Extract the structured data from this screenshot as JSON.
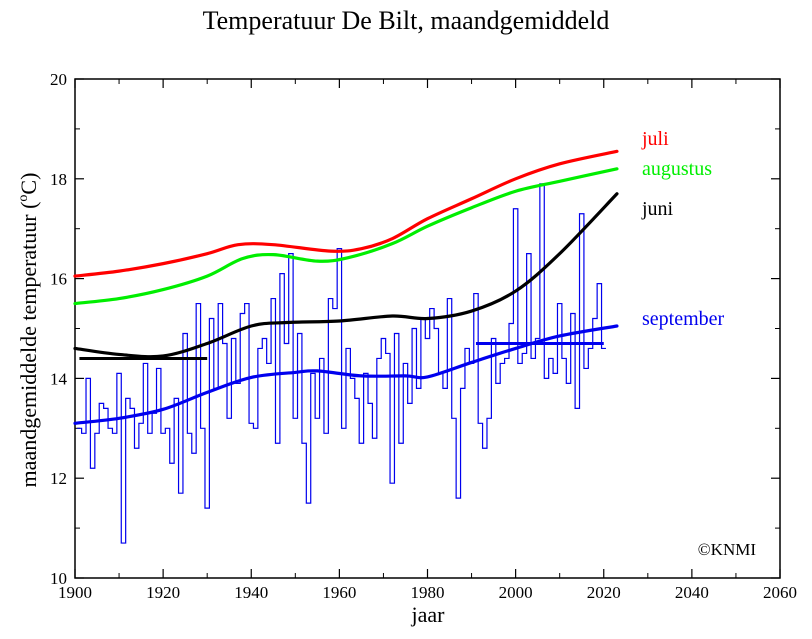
{
  "chart_data": {
    "type": "line",
    "title": "Temperatuur De Bilt, maandgemiddeld",
    "xlabel": "jaar",
    "ylabel_main": "maandgemiddelde temperatuur (",
    "ylabel_sup": "o",
    "ylabel_end": "C)",
    "xlim": [
      1900,
      2060
    ],
    "ylim": [
      10,
      20
    ],
    "xticks": [
      1900,
      1920,
      1940,
      1960,
      1980,
      2000,
      2020,
      2040,
      2060
    ],
    "yticks": [
      10,
      12,
      14,
      16,
      18,
      20
    ],
    "credit": "©KNMI",
    "series": [
      {
        "name": "juli",
        "color": "#ff0000",
        "x": [
          1900,
          1910,
          1920,
          1930,
          1937,
          1945,
          1958,
          1965,
          1972,
          1980,
          1990,
          2000,
          2010,
          2023
        ],
        "y": [
          16.05,
          16.15,
          16.3,
          16.5,
          16.68,
          16.68,
          16.55,
          16.6,
          16.8,
          17.2,
          17.6,
          18.0,
          18.3,
          18.55
        ]
      },
      {
        "name": "augustus",
        "color": "#00ee00",
        "x": [
          1900,
          1910,
          1920,
          1930,
          1938,
          1945,
          1955,
          1962,
          1972,
          1980,
          1990,
          2000,
          2010,
          2023
        ],
        "y": [
          15.5,
          15.6,
          15.78,
          16.05,
          16.4,
          16.48,
          16.35,
          16.42,
          16.7,
          17.05,
          17.42,
          17.75,
          17.95,
          18.2
        ]
      },
      {
        "name": "juni",
        "color": "#000000",
        "x": [
          1900,
          1910,
          1920,
          1930,
          1940,
          1948,
          1960,
          1972,
          1980,
          1990,
          2000,
          2010,
          2023
        ],
        "y": [
          14.6,
          14.48,
          14.45,
          14.7,
          15.05,
          15.12,
          15.15,
          15.25,
          15.2,
          15.35,
          15.75,
          16.5,
          17.7
        ]
      },
      {
        "name": "september",
        "color": "#0000ee",
        "x": [
          1900,
          1910,
          1920,
          1930,
          1940,
          1950,
          1955,
          1965,
          1975,
          1980,
          1990,
          2000,
          2010,
          2023
        ],
        "y": [
          13.1,
          13.2,
          13.38,
          13.72,
          14.02,
          14.12,
          14.15,
          14.05,
          14.05,
          14.03,
          14.32,
          14.6,
          14.85,
          15.05
        ]
      }
    ],
    "reference_lines": [
      {
        "name": "juni 1901-1930",
        "color": "#000000",
        "x": [
          1901,
          1930
        ],
        "y": 14.4
      },
      {
        "name": "september 1991-2020",
        "color": "#0000ee",
        "x": [
          1991,
          2020
        ],
        "y": 14.7
      }
    ],
    "september_yearly": {
      "color": "#0000ee",
      "start_year": 1901,
      "values": [
        13.0,
        12.9,
        14.0,
        12.2,
        12.9,
        13.5,
        13.4,
        13.0,
        12.9,
        14.1,
        10.7,
        13.6,
        13.4,
        12.6,
        13.1,
        14.3,
        12.9,
        13.3,
        14.2,
        12.9,
        13.0,
        12.3,
        13.6,
        11.7,
        14.9,
        12.9,
        12.5,
        15.5,
        13.0,
        11.4,
        15.2,
        13.8,
        15.5,
        14.7,
        13.2,
        14.8,
        13.9,
        15.3,
        15.5,
        13.1,
        13.0,
        14.6,
        14.8,
        14.3,
        15.6,
        12.7,
        16.1,
        14.7,
        16.5,
        13.2,
        14.9,
        12.7,
        11.5,
        14.1,
        13.2,
        14.4,
        12.9,
        15.6,
        15.4,
        16.6,
        13.0,
        14.6,
        14.0,
        13.6,
        12.7,
        14.1,
        13.5,
        12.8,
        14.4,
        14.8,
        14.5,
        11.9,
        14.9,
        12.7,
        14.3,
        13.5,
        15.0,
        13.8,
        15.2,
        14.8,
        15.4,
        15.0,
        14.1,
        13.8,
        15.6,
        13.2,
        11.6,
        13.8,
        14.6,
        14.3,
        15.7,
        13.1,
        12.6,
        13.2,
        14.8,
        13.9,
        14.3,
        14.4,
        15.1,
        17.4,
        14.3,
        14.5,
        16.5,
        14.4,
        14.8,
        17.9,
        14.0,
        14.4,
        14.1,
        15.5,
        14.4,
        13.9,
        15.3,
        13.4,
        17.3,
        14.2,
        14.6,
        15.2,
        15.9,
        14.6
      ]
    }
  }
}
